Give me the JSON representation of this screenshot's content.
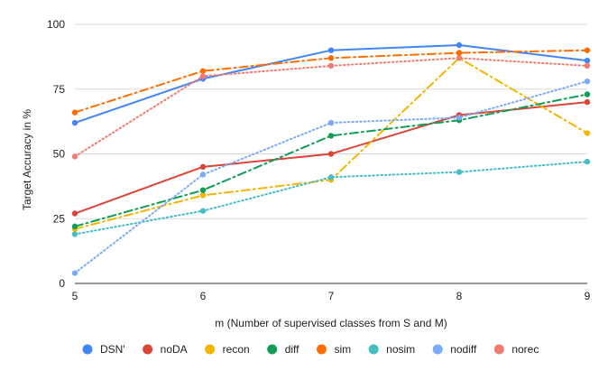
{
  "chart_data": {
    "type": "line",
    "title": "",
    "xlabel": "m (Number of supervised classes from S and M)",
    "ylabel": "Target Accuracy in %",
    "x": [
      5,
      6,
      7,
      8,
      9
    ],
    "xlim": [
      5,
      9
    ],
    "ylim": [
      0,
      100
    ],
    "yticks": [
      0,
      25,
      50,
      75,
      100
    ],
    "grid": "horizontal",
    "legend_position": "bottom",
    "series": [
      {
        "name": "DSN'",
        "color": "#4285F4",
        "style": "solid",
        "values": [
          62,
          79,
          90,
          92,
          86
        ]
      },
      {
        "name": "noDA",
        "color": "#DB4437",
        "style": "solid",
        "values": [
          27,
          45,
          50,
          65,
          70
        ]
      },
      {
        "name": "recon",
        "color": "#F4B400",
        "style": "dashdot",
        "values": [
          21,
          34,
          40,
          87,
          58
        ]
      },
      {
        "name": "diff",
        "color": "#0F9D58",
        "style": "dashdot",
        "values": [
          22,
          36,
          57,
          63,
          73
        ]
      },
      {
        "name": "sim",
        "color": "#FF6D01",
        "style": "dashdot",
        "values": [
          66,
          82,
          87,
          89,
          90
        ]
      },
      {
        "name": "nosim",
        "color": "#46BDC6",
        "style": "dotted",
        "values": [
          19,
          28,
          41,
          43,
          47
        ]
      },
      {
        "name": "nodiff",
        "color": "#7BAAF7",
        "style": "dotted",
        "values": [
          4,
          42,
          62,
          64,
          78
        ]
      },
      {
        "name": "norec",
        "color": "#F07B72",
        "style": "dotted",
        "values": [
          49,
          80,
          84,
          87,
          84
        ]
      }
    ]
  }
}
